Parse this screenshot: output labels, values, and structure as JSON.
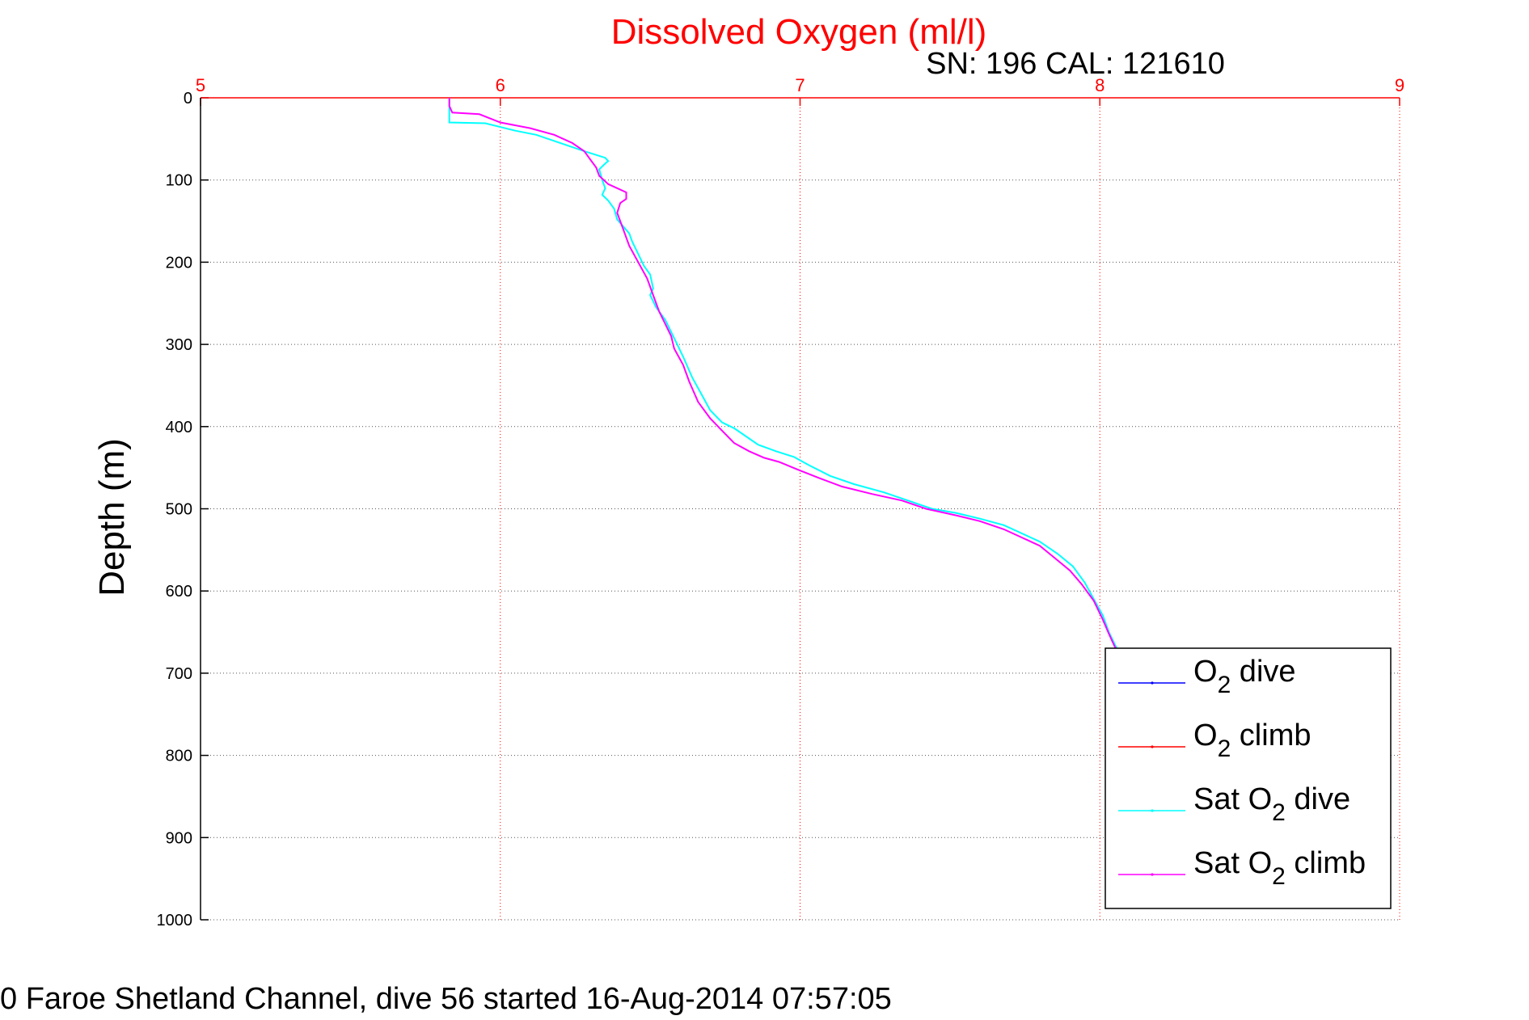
{
  "chart_data": {
    "type": "line",
    "title": "Dissolved Oxygen (ml/l)",
    "subtitle": "SN: 196  CAL: 121610",
    "xlabel": "",
    "ylabel": "Depth (m)",
    "xlim": [
      5,
      9
    ],
    "ylim": [
      0,
      1000
    ],
    "y_reversed": true,
    "x_ticks": [
      "5",
      "6",
      "7",
      "8",
      "9"
    ],
    "y_ticks": [
      "0",
      "100",
      "200",
      "300",
      "400",
      "500",
      "600",
      "700",
      "800",
      "900",
      "1000"
    ],
    "grid": true,
    "legend_position": "bottom-right",
    "series": [
      {
        "name": "O_2 dive",
        "name_main": "O",
        "name_sub": "2",
        "name_pre": "",
        "name_post": " dive",
        "color": "#0000ff",
        "points": []
      },
      {
        "name": "O_2 climb",
        "name_main": "O",
        "name_sub": "2",
        "name_pre": "",
        "name_post": " climb",
        "color": "#ff0000",
        "points": []
      },
      {
        "name": "Sat O_2 dive",
        "name_main": "O",
        "name_sub": "2",
        "name_pre": "Sat ",
        "name_post": " dive",
        "color": "#00ffff",
        "points": [
          [
            5.83,
            0
          ],
          [
            5.83,
            15
          ],
          [
            5.83,
            30
          ],
          [
            5.95,
            31
          ],
          [
            6.05,
            40
          ],
          [
            6.12,
            45
          ],
          [
            6.2,
            55
          ],
          [
            6.28,
            65
          ],
          [
            6.35,
            73
          ],
          [
            6.36,
            77
          ],
          [
            6.35,
            80
          ],
          [
            6.33,
            87
          ],
          [
            6.34,
            100
          ],
          [
            6.35,
            110
          ],
          [
            6.34,
            118
          ],
          [
            6.36,
            125
          ],
          [
            6.38,
            135
          ],
          [
            6.39,
            148
          ],
          [
            6.43,
            165
          ],
          [
            6.44,
            175
          ],
          [
            6.46,
            190
          ],
          [
            6.48,
            205
          ],
          [
            6.5,
            215
          ],
          [
            6.51,
            232
          ],
          [
            6.5,
            240
          ],
          [
            6.52,
            255
          ],
          [
            6.55,
            270
          ],
          [
            6.57,
            285
          ],
          [
            6.59,
            300
          ],
          [
            6.61,
            315
          ],
          [
            6.64,
            340
          ],
          [
            6.67,
            360
          ],
          [
            6.7,
            380
          ],
          [
            6.74,
            395
          ],
          [
            6.78,
            402
          ],
          [
            6.82,
            412
          ],
          [
            6.86,
            422
          ],
          [
            6.92,
            430
          ],
          [
            6.98,
            437
          ],
          [
            7.03,
            447
          ],
          [
            7.1,
            460
          ],
          [
            7.18,
            470
          ],
          [
            7.28,
            480
          ],
          [
            7.36,
            490
          ],
          [
            7.44,
            500
          ],
          [
            7.52,
            505
          ],
          [
            7.6,
            512
          ],
          [
            7.68,
            520
          ],
          [
            7.74,
            530
          ],
          [
            7.8,
            540
          ],
          [
            7.86,
            555
          ],
          [
            7.91,
            570
          ],
          [
            7.95,
            590
          ],
          [
            7.98,
            610
          ],
          [
            8.01,
            630
          ],
          [
            8.03,
            650
          ],
          [
            8.05,
            665
          ],
          [
            8.06,
            672
          ]
        ]
      },
      {
        "name": "Sat O_2 climb",
        "name_main": "O",
        "name_sub": "2",
        "name_pre": "Sat ",
        "name_post": " climb",
        "color": "#ff00ff",
        "points": [
          [
            5.83,
            0
          ],
          [
            5.83,
            10
          ],
          [
            5.84,
            18
          ],
          [
            5.93,
            20
          ],
          [
            6.0,
            30
          ],
          [
            6.1,
            37
          ],
          [
            6.18,
            45
          ],
          [
            6.24,
            55
          ],
          [
            6.28,
            65
          ],
          [
            6.3,
            75
          ],
          [
            6.32,
            85
          ],
          [
            6.33,
            95
          ],
          [
            6.36,
            105
          ],
          [
            6.42,
            115
          ],
          [
            6.42,
            123
          ],
          [
            6.4,
            128
          ],
          [
            6.39,
            140
          ],
          [
            6.41,
            160
          ],
          [
            6.43,
            180
          ],
          [
            6.46,
            200
          ],
          [
            6.49,
            220
          ],
          [
            6.51,
            240
          ],
          [
            6.53,
            260
          ],
          [
            6.55,
            275
          ],
          [
            6.57,
            290
          ],
          [
            6.58,
            305
          ],
          [
            6.61,
            325
          ],
          [
            6.63,
            345
          ],
          [
            6.66,
            370
          ],
          [
            6.7,
            390
          ],
          [
            6.74,
            405
          ],
          [
            6.78,
            420
          ],
          [
            6.83,
            430
          ],
          [
            6.88,
            438
          ],
          [
            6.93,
            443
          ],
          [
            6.99,
            452
          ],
          [
            7.06,
            462
          ],
          [
            7.14,
            473
          ],
          [
            7.24,
            482
          ],
          [
            7.34,
            490
          ],
          [
            7.42,
            500
          ],
          [
            7.52,
            508
          ],
          [
            7.6,
            515
          ],
          [
            7.68,
            525
          ],
          [
            7.74,
            535
          ],
          [
            7.8,
            545
          ],
          [
            7.85,
            560
          ],
          [
            7.9,
            575
          ],
          [
            7.94,
            592
          ],
          [
            7.98,
            612
          ],
          [
            8.01,
            635
          ],
          [
            8.03,
            652
          ],
          [
            8.05,
            668
          ],
          [
            8.06,
            674
          ]
        ]
      }
    ]
  },
  "footer_text": "0 Faroe Shetland Channel, dive 56 started 16-Aug-2014 07:57:05"
}
